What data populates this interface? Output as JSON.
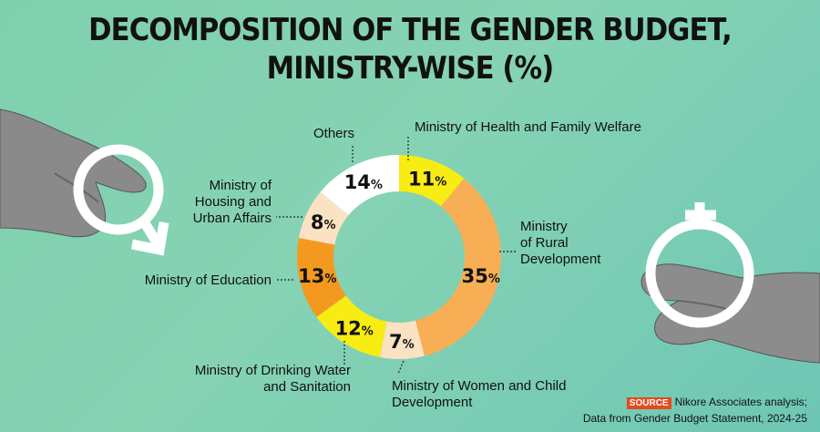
{
  "title": {
    "line1": "DECOMPOSITION OF THE GENDER BUDGET,",
    "line2": "MINISTRY-WISE (%)"
  },
  "chart_data": {
    "type": "pie",
    "donut": true,
    "title": "DECOMPOSITION OF THE GENDER BUDGET, MINISTRY-WISE (%)",
    "unit": "%",
    "slices": [
      {
        "label": "Ministry of Health and Family Welfare",
        "value": 11,
        "color": "#f7ec13"
      },
      {
        "label": "Ministry of Rural Development",
        "value": 35,
        "color": "#f7ae55"
      },
      {
        "label": "Ministry of Women and Child Development",
        "value": 7,
        "color": "#fbe2c3"
      },
      {
        "label": "Ministry of Drinking Water and Sanitation",
        "value": 12,
        "color": "#f7ec13"
      },
      {
        "label": "Ministry of Education",
        "value": 13,
        "color": "#f4991f"
      },
      {
        "label": "Ministry of Housing and Urban Affairs",
        "value": 8,
        "color": "#fbe2c3"
      },
      {
        "label": "Others",
        "value": 14,
        "color": "#ffffff"
      }
    ],
    "label_lines": [
      [
        "Ministry of Health and Family Welfare"
      ],
      [
        "Ministry",
        "of Rural",
        "Development"
      ],
      [
        "Ministry of Women and Child",
        "Development"
      ],
      [
        "Ministry of Drinking Water",
        "and Sanitation"
      ],
      [
        "Ministry of Education"
      ],
      [
        "Ministry of",
        "Housing and",
        "Urban Affairs"
      ],
      [
        "Others"
      ]
    ]
  },
  "source": {
    "tag": "SOURCE",
    "line1": "Nikore Associates analysis;",
    "line2": "Data from Gender Budget Statement, 2024-25"
  },
  "icons": {
    "left": "male-symbol-hand",
    "right": "female-symbol-hand"
  }
}
